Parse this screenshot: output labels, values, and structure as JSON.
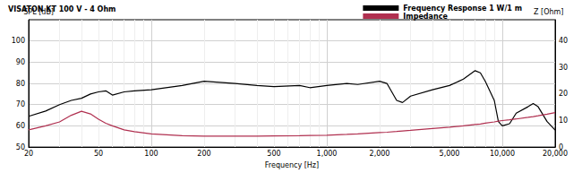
{
  "chart_data": {
    "type": "line",
    "title": "VISATON KT 100 V - 4 Ohm",
    "x_label": "Frequency [Hz]",
    "y_label": "SPL [dB]",
    "y2_label": "Z [Ohm]",
    "log": "x",
    "grid": true,
    "legend": "top-right",
    "x": [
      20,
      25,
      30,
      35,
      40,
      45,
      50,
      55,
      60,
      70,
      80,
      100,
      150,
      200,
      300,
      400,
      500,
      700,
      800,
      1000,
      1300,
      1500,
      2000,
      2200,
      2500,
      2700,
      3000,
      4000,
      5000,
      6000,
      7000,
      7500,
      8000,
      9000,
      9500,
      10000,
      11000,
      12000,
      14000,
      15000,
      16000,
      18000,
      20000
    ],
    "xlim": [
      20,
      20000
    ],
    "xticks": [
      20,
      50,
      100,
      200,
      500,
      1000,
      2000,
      5000,
      10000,
      20000
    ],
    "ylim": [
      50,
      110
    ],
    "yticks": [
      50,
      60,
      70,
      80,
      90,
      100
    ],
    "y2lim": [
      0,
      48
    ],
    "y2ticks": [
      0,
      10,
      20,
      30,
      40
    ],
    "series": [
      {
        "name": "Frequency Response 1 W/1 m",
        "color": "#000000",
        "values": [
          64.5,
          67,
          70,
          72,
          73,
          75,
          76,
          76.5,
          74.5,
          76,
          76.5,
          77,
          79,
          81,
          80,
          79,
          78.5,
          79,
          78,
          79,
          80,
          79.5,
          81,
          80,
          72,
          71,
          74,
          77,
          79,
          82,
          86,
          85,
          81,
          72,
          62,
          60,
          61,
          66,
          69,
          70.5,
          69,
          62,
          58
        ]
      },
      {
        "name": "Impedance",
        "color": "#b03050",
        "axis": "y2",
        "values": [
          6.5,
          8,
          9.5,
          12,
          13.5,
          12.5,
          10.5,
          9,
          8,
          6.5,
          5.8,
          5,
          4.3,
          4.1,
          4.1,
          4.1,
          4.2,
          4.3,
          4.4,
          4.5,
          4.8,
          5,
          5.5,
          5.6,
          5.9,
          6.1,
          6.3,
          7,
          7.5,
          8,
          8.5,
          8.7,
          9,
          9.5,
          9.8,
          10,
          10.3,
          10.6,
          11.2,
          11.5,
          11.8,
          12.4,
          13
        ]
      }
    ]
  }
}
